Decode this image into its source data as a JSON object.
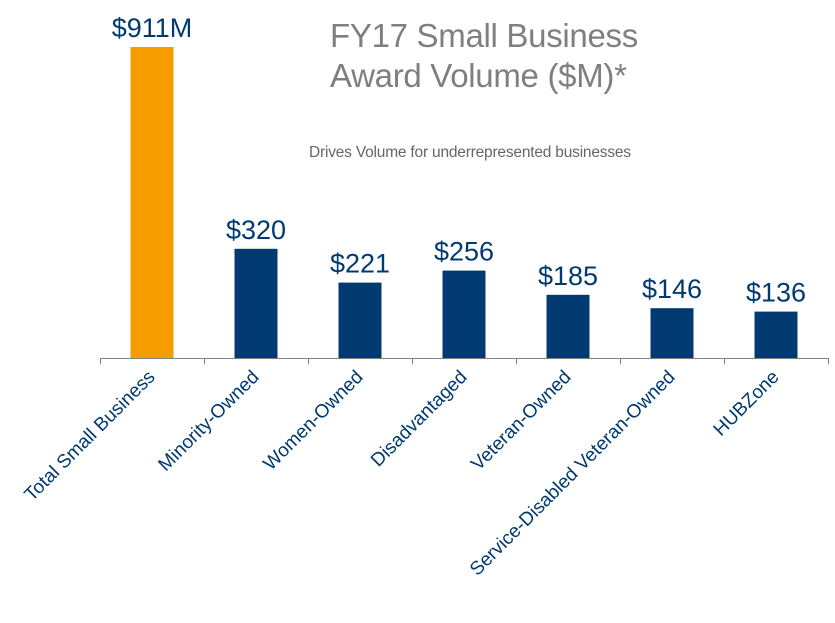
{
  "chart_data": {
    "type": "bar",
    "title_lines": [
      "FY17 Small Business",
      "Award Volume ($M)*"
    ],
    "subtitle": "Drives Volume for underrepresented businesses",
    "xlabel": "",
    "ylabel": "",
    "categories": [
      "Total Small Business",
      "Minority-Owned",
      "Women-Owned",
      "Disadvantaged",
      "Veteran-Owned",
      "Service-Disabled Veteran-Owned",
      "HUBZone"
    ],
    "values": [
      911,
      320,
      221,
      256,
      185,
      146,
      136
    ],
    "data_labels": [
      "$911M",
      "$320",
      "$221",
      "$256",
      "$185",
      "$146",
      "$136"
    ],
    "ylim": [
      0,
      911
    ],
    "grid": false,
    "legend": "none",
    "colors": {
      "highlight": "#f59c00",
      "bar": "#003a70",
      "label": "#003a70",
      "axis": "#808080"
    }
  }
}
